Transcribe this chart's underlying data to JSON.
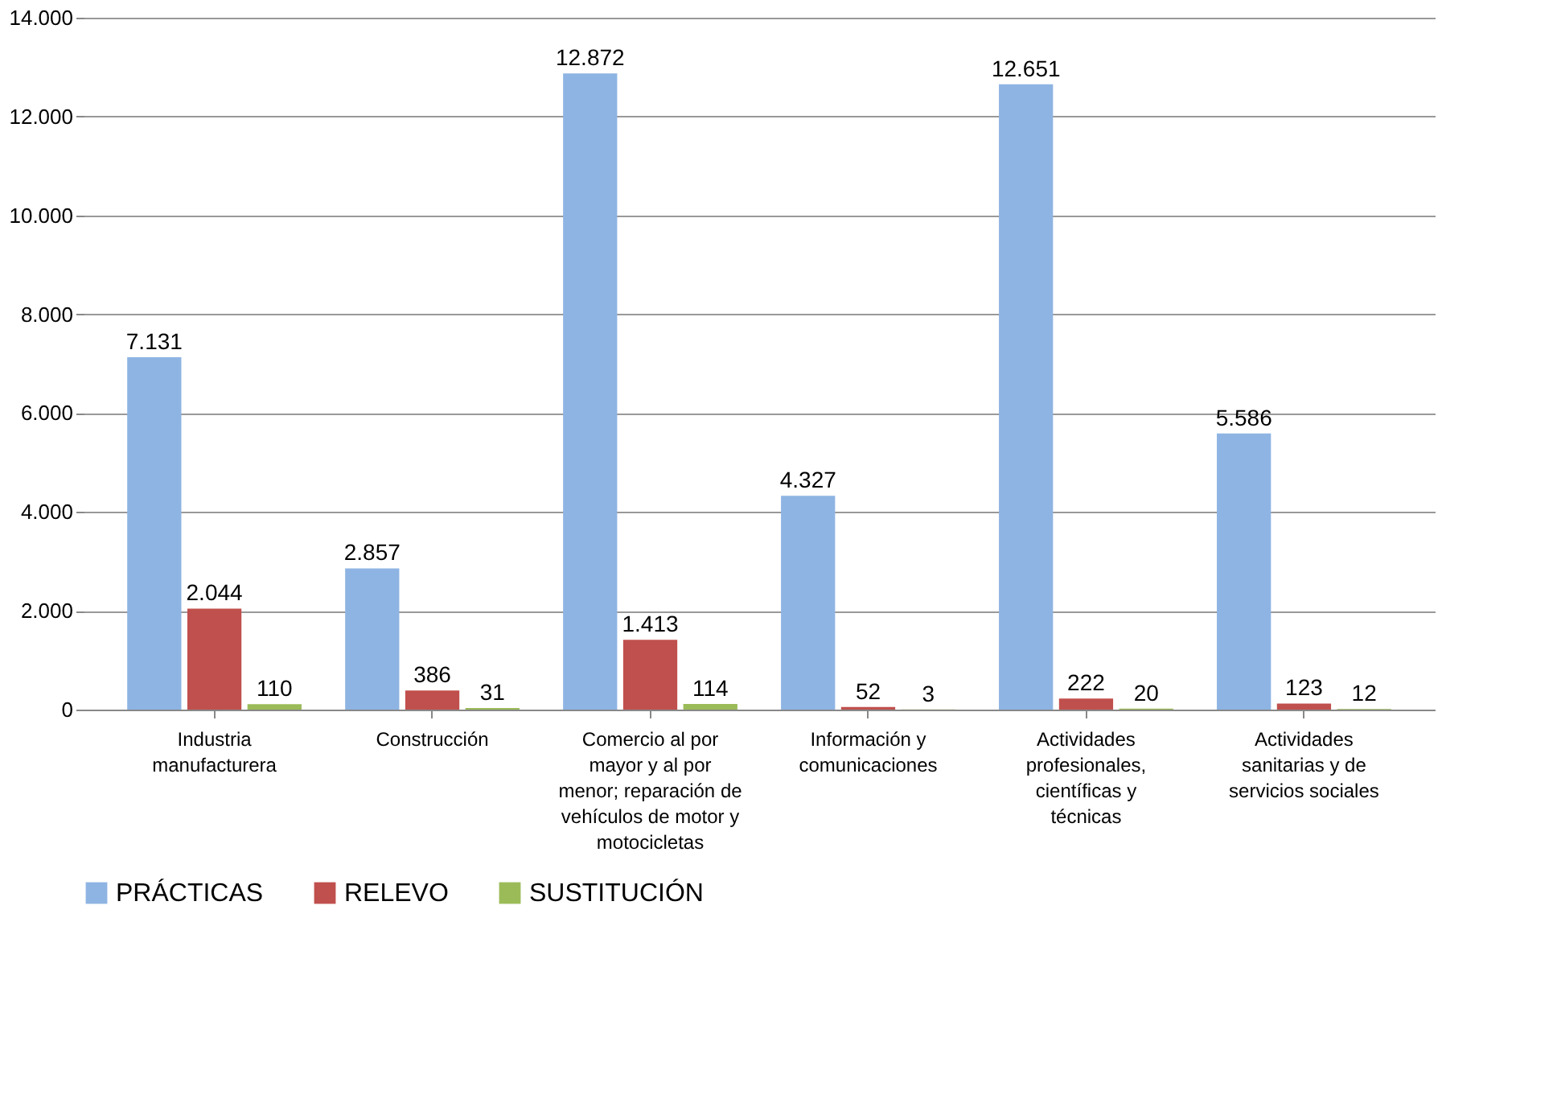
{
  "chart_data": {
    "type": "bar",
    "categories": [
      "Industria manufacturera",
      "Construcción",
      "Comercio al por mayor y al por menor; reparación de vehículos de motor y motocicletas",
      "Información y comunicaciones",
      "Actividades profesionales, científicas y técnicas",
      "Actividades sanitarias y de servicios sociales"
    ],
    "series": [
      {
        "name": "PRÁCTICAS",
        "color": "#8eb4e3",
        "values": [
          7131,
          2857,
          12872,
          4327,
          12651,
          5586
        ],
        "value_labels": [
          "7.131",
          "2.857",
          "12.872",
          "4.327",
          "12.651",
          "5.586"
        ]
      },
      {
        "name": "RELEVO",
        "color": "#c0504d",
        "values": [
          2044,
          386,
          1413,
          52,
          222,
          123
        ],
        "value_labels": [
          "2.044",
          "386",
          "1.413",
          "52",
          "222",
          "123"
        ]
      },
      {
        "name": "SUSTITUCIÓN",
        "color": "#9bbb59",
        "values": [
          110,
          31,
          114,
          3,
          20,
          12
        ],
        "value_labels": [
          "110",
          "31",
          "114",
          "3",
          "20",
          "12"
        ]
      }
    ],
    "ylim": [
      0,
      14000
    ],
    "yticks": [
      {
        "value": 0,
        "label": "0"
      },
      {
        "value": 2000,
        "label": "2.000"
      },
      {
        "value": 4000,
        "label": "4.000"
      },
      {
        "value": 6000,
        "label": "6.000"
      },
      {
        "value": 8000,
        "label": "8.000"
      },
      {
        "value": 10000,
        "label": "10.000"
      },
      {
        "value": 12000,
        "label": "12.000"
      },
      {
        "value": 14000,
        "label": "14.000"
      }
    ],
    "grid": "y",
    "legend": "bottom"
  }
}
